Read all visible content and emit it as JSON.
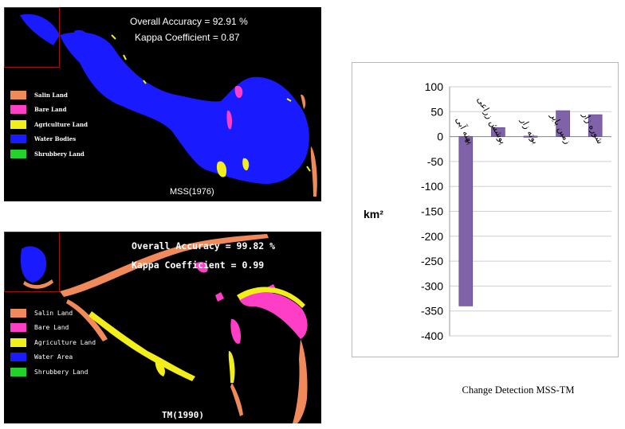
{
  "maps": [
    {
      "accuracy_text": "Overall Accuracy = 92.91 %",
      "kappa_text": "Kappa Coefficient = 0.87",
      "caption": "MSS(1976)",
      "legend": [
        {
          "label": "Salin Land",
          "color": "#f08a5a"
        },
        {
          "label": "Bare Land",
          "color": "#ff3ec8"
        },
        {
          "label": "Agriculture Land",
          "color": "#f2ee1a"
        },
        {
          "label": "Water Bodies",
          "color": "#1a1aff"
        },
        {
          "label": "Shrubbery Land",
          "color": "#22d42a"
        }
      ]
    },
    {
      "accuracy_text": "Overall Accuracy = 99.82 %",
      "kappa_text": "Kappa Coefficient = 0.99",
      "caption": "TM(1990)",
      "legend": [
        {
          "label": "Salin Land",
          "color": "#f08a5a"
        },
        {
          "label": "Bare Land",
          "color": "#ff3ec8"
        },
        {
          "label": "Agriculture Land",
          "color": "#f2ee1a"
        },
        {
          "label": "Water Area",
          "color": "#1a1aff"
        },
        {
          "label": "Shrubbery Land",
          "color": "#22d42a"
        }
      ]
    }
  ],
  "chart_data": {
    "type": "bar",
    "categories": [
      "پهنه آبی",
      "پوشش زراعی",
      "بوته زار",
      "زمین بایر",
      "شوره زار"
    ],
    "values": [
      -340,
      18,
      1,
      52,
      44
    ],
    "ylabel": "km²",
    "ylim": [
      -400,
      100
    ],
    "yticks": [
      100,
      50,
      0,
      -50,
      -100,
      -150,
      -200,
      -250,
      -300,
      -350,
      -400
    ],
    "grid": true,
    "bar_color": "#7f62a8"
  },
  "bottom_caption": "Change Detection MSS-TM"
}
